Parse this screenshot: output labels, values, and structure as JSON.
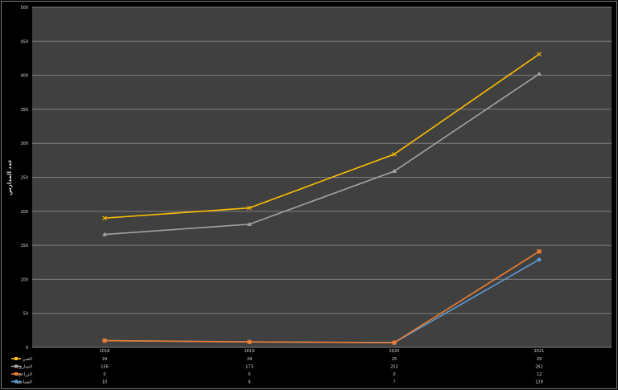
{
  "chart_data": {
    "type": "line",
    "stacked": true,
    "categories": [
      "2018",
      "2019",
      "2020",
      "2021"
    ],
    "ylabel": "عدد المدارس",
    "ylim": [
      0,
      500
    ],
    "yticks": [
      0,
      50,
      100,
      150,
      200,
      250,
      300,
      350,
      400,
      450,
      500
    ],
    "grid": true,
    "legend": "data-table-bottom",
    "background": "#404040",
    "series": [
      {
        "name": "الفني",
        "values": [
          24,
          24,
          25,
          29
        ],
        "color": "#ffc000",
        "marker": "x"
      },
      {
        "name": "التجاري",
        "values": [
          156,
          173,
          252,
          261
        ],
        "color": "#a5a5a5",
        "marker": "triangle"
      },
      {
        "name": "الزراعي",
        "values": [
          0,
          0,
          0,
          12
        ],
        "color": "#ed7d31",
        "marker": "square"
      },
      {
        "name": "الصناعي",
        "values": [
          10,
          8,
          7,
          129
        ],
        "color": "#5b9bd5",
        "marker": "diamond"
      }
    ]
  }
}
